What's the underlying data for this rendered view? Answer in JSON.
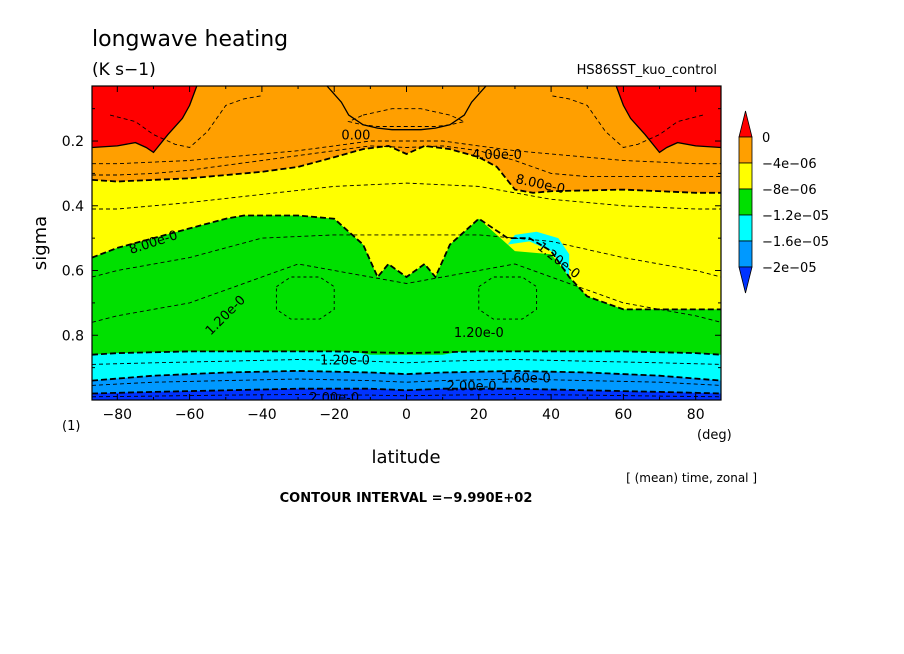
{
  "chart_data": {
    "type": "heatmap",
    "title": "longwave heating",
    "units": "(K s−1)",
    "experiment": "HS86SST_kuo_control",
    "xlabel": "latitude",
    "ylabel": "sigma",
    "x_unit": "(deg)",
    "panel_label": "(1)",
    "averaging_note": "[ (mean) time, zonal ]",
    "contour_interval": "CONTOUR INTERVAL =−9.990E+02",
    "xlim": [
      -87,
      87
    ],
    "ylim": [
      1.0,
      0.03
    ],
    "x_ticks": [
      -80,
      -60,
      -40,
      -20,
      0,
      20,
      40,
      60,
      80
    ],
    "y_ticks": [
      0.2,
      0.4,
      0.6,
      0.8
    ],
    "colorbar": {
      "levels": [
        "0",
        "−4e−06",
        "−8e−06",
        "−1.2e−05",
        "−1.6e−05",
        "−2e−05"
      ],
      "colors": [
        "#ff0000",
        "#ff9f00",
        "#ffff00",
        "#00e000",
        "#00ffff",
        "#0099ff",
        "#0033ff"
      ]
    },
    "contour_labels": [
      "0.00",
      "4.00e-0",
      "8.00e-0",
      "8.00e-0",
      "1.20e-0",
      "1.20e-0",
      "1.20e-0",
      "1.20e-0",
      "1.60e-0",
      "2.00e-0",
      "2.00e-0"
    ],
    "regions": [
      {
        "name": "positive-top",
        "color": "#ff0000",
        "x": [
          -87,
          -86,
          -80,
          -75,
          -70,
          -66,
          -63,
          -60,
          -58,
          -55,
          -50,
          -40,
          -30,
          -22,
          -18,
          -16,
          -12,
          -8,
          -4,
          0,
          4,
          8,
          12,
          16,
          18,
          22,
          30,
          40,
          50,
          55,
          58,
          60,
          63,
          66,
          70,
          75,
          80,
          86,
          87
        ],
        "y": [
          0.03,
          0.03,
          0.03,
          0.03,
          0.03,
          0.03,
          0.03,
          0.03,
          0.03,
          0.03,
          0.03,
          0.03,
          0.03,
          0.03,
          0.08,
          0.12,
          0.15,
          0.16,
          0.165,
          0.165,
          0.165,
          0.16,
          0.15,
          0.12,
          0.08,
          0.03,
          0.03,
          0.03,
          0.03,
          0.03,
          0.03,
          0.03,
          0.03,
          0.03,
          0.03,
          0.03,
          0.03,
          0.03,
          0.03
        ]
      },
      {
        "name": "orange-band",
        "color": "#ff9f00",
        "x": [
          -87,
          -80,
          -75,
          -72,
          -70,
          -66,
          -62,
          -60,
          -58,
          -55,
          -50,
          -40,
          -30,
          -20,
          -10,
          -5,
          0,
          5,
          10,
          20,
          30,
          40,
          50,
          55,
          58,
          60,
          62,
          66,
          70,
          72,
          75,
          80,
          87
        ],
        "y": [
          0.22,
          0.215,
          0.205,
          0.22,
          0.235,
          0.18,
          0.13,
          0.09,
          0.03,
          0.03,
          0.03,
          0.03,
          0.03,
          0.03,
          0.03,
          0.03,
          0.03,
          0.03,
          0.03,
          0.03,
          0.03,
          0.03,
          0.03,
          0.03,
          0.03,
          0.09,
          0.13,
          0.18,
          0.235,
          0.22,
          0.205,
          0.215,
          0.22
        ]
      },
      {
        "name": "yellow-band",
        "color": "#ffff00",
        "x": [
          -87,
          -80,
          -60,
          -40,
          -30,
          -20,
          -12,
          -5,
          0,
          5,
          12,
          20,
          25,
          30,
          35,
          40,
          60,
          80,
          87
        ],
        "y": [
          0.32,
          0.325,
          0.315,
          0.295,
          0.28,
          0.25,
          0.225,
          0.215,
          0.24,
          0.215,
          0.225,
          0.25,
          0.28,
          0.35,
          0.36,
          0.355,
          0.35,
          0.36,
          0.36
        ]
      },
      {
        "name": "green-band",
        "color": "#00e000",
        "x": [
          -87,
          -80,
          -60,
          -50,
          -45,
          -40,
          -30,
          -20,
          -12,
          -8,
          -5,
          0,
          5,
          8,
          12,
          20,
          30,
          40,
          45,
          50,
          60,
          80,
          87
        ],
        "y": [
          0.56,
          0.53,
          0.47,
          0.44,
          0.43,
          0.43,
          0.43,
          0.44,
          0.52,
          0.62,
          0.58,
          0.62,
          0.58,
          0.62,
          0.52,
          0.44,
          0.54,
          0.55,
          0.62,
          0.68,
          0.72,
          0.72,
          0.72
        ]
      },
      {
        "name": "cyan-band",
        "color": "#00ffff",
        "x": [
          -87,
          -80,
          -60,
          -40,
          -20,
          0,
          20,
          40,
          60,
          80,
          87
        ],
        "y": [
          0.86,
          0.855,
          0.85,
          0.85,
          0.85,
          0.855,
          0.85,
          0.85,
          0.85,
          0.855,
          0.86
        ]
      },
      {
        "name": "lightblue-band",
        "color": "#0099ff",
        "x": [
          -87,
          -70,
          -50,
          -30,
          -10,
          0,
          10,
          30,
          50,
          70,
          87
        ],
        "y": [
          0.94,
          0.925,
          0.915,
          0.91,
          0.915,
          0.92,
          0.915,
          0.91,
          0.915,
          0.925,
          0.94
        ]
      },
      {
        "name": "blue-band",
        "color": "#0033ff",
        "x": [
          -87,
          -70,
          -50,
          -30,
          -10,
          0,
          10,
          30,
          50,
          70,
          87
        ],
        "y": [
          0.98,
          0.975,
          0.97,
          0.965,
          0.965,
          0.97,
          0.965,
          0.965,
          0.97,
          0.975,
          0.98
        ]
      }
    ],
    "islands": [
      {
        "name": "green-island",
        "color": "#00e000",
        "x": [
          -47,
          -40,
          -30,
          -20,
          -12,
          -8,
          -5,
          0,
          5,
          8,
          12,
          20,
          30,
          40,
          47,
          40,
          30,
          20,
          10,
          0,
          -10,
          -20,
          -30,
          -40
        ],
        "y": [
          0.82,
          0.8,
          0.79,
          0.79,
          0.8,
          0.72,
          0.7,
          0.71,
          0.7,
          0.72,
          0.8,
          0.79,
          0.79,
          0.8,
          0.82,
          0.84,
          0.845,
          0.84,
          0.86,
          0.86,
          0.86,
          0.84,
          0.845,
          0.84
        ]
      },
      {
        "name": "cyan-bulge",
        "color": "#00ffff",
        "x": [
          28,
          34,
          40,
          45,
          45,
          42,
          36,
          30,
          28
        ],
        "y": [
          0.52,
          0.51,
          0.54,
          0.62,
          0.55,
          0.5,
          0.48,
          0.49,
          0.52
        ]
      }
    ],
    "contours": [
      {
        "dash": "4,3",
        "x": [
          -87,
          -80,
          -70,
          -60,
          -50,
          -40,
          -30,
          -20,
          -10,
          0,
          10,
          20,
          30,
          40,
          50,
          60,
          70,
          80,
          87
        ],
        "y": [
          0.27,
          0.27,
          0.265,
          0.26,
          0.25,
          0.24,
          0.23,
          0.215,
          0.2,
          0.2,
          0.2,
          0.215,
          0.23,
          0.24,
          0.25,
          0.26,
          0.265,
          0.27,
          0.27
        ]
      },
      {
        "dash": "4,3",
        "x": [
          -87,
          -80,
          -70,
          -60,
          -50,
          -40,
          -30,
          -20,
          -10,
          0,
          10,
          20,
          30,
          40,
          50,
          60,
          70,
          80,
          87
        ],
        "y": [
          0.305,
          0.305,
          0.3,
          0.29,
          0.275,
          0.26,
          0.245,
          0.23,
          0.215,
          0.22,
          0.215,
          0.23,
          0.26,
          0.3,
          0.31,
          0.31,
          0.31,
          0.31,
          0.31
        ]
      },
      {
        "dash": "4,3",
        "x": [
          -87,
          -80,
          -60,
          -40,
          -20,
          0,
          20,
          40,
          60,
          80,
          87
        ],
        "y": [
          0.41,
          0.41,
          0.39,
          0.365,
          0.34,
          0.33,
          0.34,
          0.38,
          0.4,
          0.41,
          0.41
        ]
      },
      {
        "dash": "4,3",
        "x": [
          -87,
          -80,
          -60,
          -40,
          -20,
          0,
          20,
          40,
          60,
          80,
          87
        ],
        "y": [
          0.62,
          0.6,
          0.56,
          0.5,
          0.49,
          0.49,
          0.49,
          0.51,
          0.56,
          0.6,
          0.62
        ]
      },
      {
        "dash": "4,3",
        "x": [
          -87,
          -80,
          -60,
          -40,
          -30,
          -20,
          0,
          20,
          30,
          40,
          60,
          80,
          87
        ],
        "y": [
          0.76,
          0.74,
          0.7,
          0.62,
          0.58,
          0.6,
          0.64,
          0.6,
          0.58,
          0.62,
          0.7,
          0.74,
          0.76
        ]
      },
      {
        "dash": "4,3",
        "x": [
          -87,
          -70,
          -50,
          -30,
          -10,
          0,
          10,
          30,
          50,
          70,
          87
        ],
        "y": [
          0.89,
          0.885,
          0.88,
          0.875,
          0.88,
          0.885,
          0.88,
          0.875,
          0.88,
          0.885,
          0.89
        ]
      },
      {
        "dash": "4,3",
        "x": [
          -87,
          -70,
          -50,
          -30,
          -10,
          0,
          10,
          30,
          50,
          70,
          87
        ],
        "y": [
          0.955,
          0.945,
          0.94,
          0.935,
          0.94,
          0.945,
          0.94,
          0.935,
          0.94,
          0.945,
          0.955
        ]
      },
      {
        "dash": "4,3",
        "x": [
          -87,
          -70,
          -50,
          -30,
          -10,
          0,
          10,
          30,
          50,
          70,
          87
        ],
        "y": [
          0.99,
          0.988,
          0.985,
          0.983,
          0.985,
          0.987,
          0.985,
          0.983,
          0.985,
          0.988,
          0.99
        ]
      },
      {
        "dash": "4,3",
        "x": [
          -82,
          -75,
          -70,
          -66,
          -64,
          -60,
          -55,
          -50,
          -45,
          -40
        ],
        "y": [
          0.12,
          0.14,
          0.18,
          0.2,
          0.21,
          0.22,
          0.17,
          0.09,
          0.07,
          0.06
        ]
      },
      {
        "dash": "4,3",
        "x": [
          82,
          75,
          70,
          66,
          64,
          60,
          55,
          50,
          45,
          40
        ],
        "y": [
          0.12,
          0.14,
          0.18,
          0.2,
          0.21,
          0.22,
          0.17,
          0.09,
          0.07,
          0.06
        ]
      },
      {
        "dash": "4,3",
        "x": [
          -12,
          -8,
          -4,
          0,
          4,
          8,
          12,
          16,
          12,
          8,
          4,
          0,
          -4,
          -8,
          -12,
          -16,
          -12
        ],
        "y": [
          0.12,
          0.11,
          0.1,
          0.1,
          0.1,
          0.11,
          0.12,
          0.14,
          0.15,
          0.155,
          0.155,
          0.155,
          0.155,
          0.155,
          0.15,
          0.14,
          0.12
        ]
      },
      {
        "dash": "3,3",
        "x": [
          -36,
          -32,
          -24,
          -20,
          -20,
          -24,
          -32,
          -36,
          -36
        ],
        "y": [
          0.65,
          0.62,
          0.62,
          0.65,
          0.72,
          0.75,
          0.75,
          0.72,
          0.65
        ]
      },
      {
        "dash": "3,3",
        "x": [
          20,
          24,
          32,
          36,
          36,
          32,
          24,
          20,
          20
        ],
        "y": [
          0.65,
          0.62,
          0.62,
          0.65,
          0.72,
          0.75,
          0.75,
          0.72,
          0.65
        ]
      }
    ],
    "solid_lines": [
      {
        "x": [
          -87,
          -80,
          -75,
          -72,
          -70,
          -66,
          -62,
          -60,
          -58
        ],
        "y": [
          0.22,
          0.215,
          0.205,
          0.22,
          0.235,
          0.18,
          0.13,
          0.09,
          0.03
        ]
      },
      {
        "x": [
          87,
          80,
          75,
          72,
          70,
          66,
          62,
          60,
          58
        ],
        "y": [
          0.22,
          0.215,
          0.205,
          0.22,
          0.235,
          0.18,
          0.13,
          0.09,
          0.03
        ]
      },
      {
        "x": [
          -22,
          -18,
          -16,
          -12,
          -8,
          -4,
          0,
          4,
          8,
          12,
          16,
          18,
          22
        ],
        "y": [
          0.03,
          0.08,
          0.12,
          0.15,
          0.16,
          0.165,
          0.165,
          0.165,
          0.16,
          0.15,
          0.12,
          0.08,
          0.03
        ]
      }
    ],
    "dashed_bold": [
      {
        "x": [
          -87,
          -80,
          -60,
          -40,
          -30,
          -20,
          -12,
          -5,
          0,
          5,
          12,
          20,
          25,
          30,
          35,
          40,
          60,
          80,
          87
        ],
        "y": [
          0.32,
          0.325,
          0.315,
          0.295,
          0.28,
          0.25,
          0.225,
          0.215,
          0.24,
          0.215,
          0.225,
          0.25,
          0.28,
          0.35,
          0.36,
          0.355,
          0.35,
          0.36,
          0.36
        ]
      },
      {
        "x": [
          -87,
          -80,
          -60,
          -50,
          -45,
          -40,
          -30,
          -20,
          -12,
          -8,
          -5,
          0,
          5,
          8,
          12,
          20,
          28,
          34,
          40,
          45,
          50,
          60,
          80,
          87
        ],
        "y": [
          0.56,
          0.53,
          0.47,
          0.44,
          0.43,
          0.43,
          0.43,
          0.44,
          0.52,
          0.62,
          0.58,
          0.62,
          0.58,
          0.62,
          0.52,
          0.44,
          0.5,
          0.5,
          0.54,
          0.62,
          0.68,
          0.72,
          0.72,
          0.72
        ]
      },
      {
        "x": [
          -87,
          -80,
          -60,
          -40,
          -20,
          0,
          20,
          40,
          60,
          80,
          87
        ],
        "y": [
          0.86,
          0.855,
          0.85,
          0.85,
          0.85,
          0.855,
          0.85,
          0.85,
          0.85,
          0.855,
          0.86
        ]
      },
      {
        "x": [
          -87,
          -70,
          -50,
          -30,
          -10,
          0,
          10,
          30,
          50,
          70,
          87
        ],
        "y": [
          0.94,
          0.925,
          0.915,
          0.91,
          0.915,
          0.92,
          0.915,
          0.91,
          0.915,
          0.925,
          0.94
        ]
      },
      {
        "x": [
          -87,
          -70,
          -50,
          -30,
          -10,
          0,
          10,
          30,
          50,
          70,
          87
        ],
        "y": [
          0.98,
          0.975,
          0.97,
          0.965,
          0.965,
          0.97,
          0.965,
          0.965,
          0.97,
          0.975,
          0.98
        ]
      }
    ],
    "label_positions": [
      {
        "x": -14,
        "y": 0.185,
        "angle": 0
      },
      {
        "x": 25,
        "y": 0.245,
        "angle": 0
      },
      {
        "x": 37,
        "y": 0.335,
        "angle": 12
      },
      {
        "x": -70,
        "y": 0.515,
        "angle": -18
      },
      {
        "x": -50,
        "y": 0.74,
        "angle": -45
      },
      {
        "x": 42,
        "y": 0.57,
        "angle": 38
      },
      {
        "x": 20,
        "y": 0.795,
        "angle": 0
      },
      {
        "x": -17,
        "y": 0.88,
        "angle": 0
      },
      {
        "x": 33,
        "y": 0.935,
        "angle": 0
      },
      {
        "x": 18,
        "y": 0.96,
        "angle": 0
      },
      {
        "x": -20,
        "y": 0.995,
        "angle": 0
      }
    ]
  }
}
